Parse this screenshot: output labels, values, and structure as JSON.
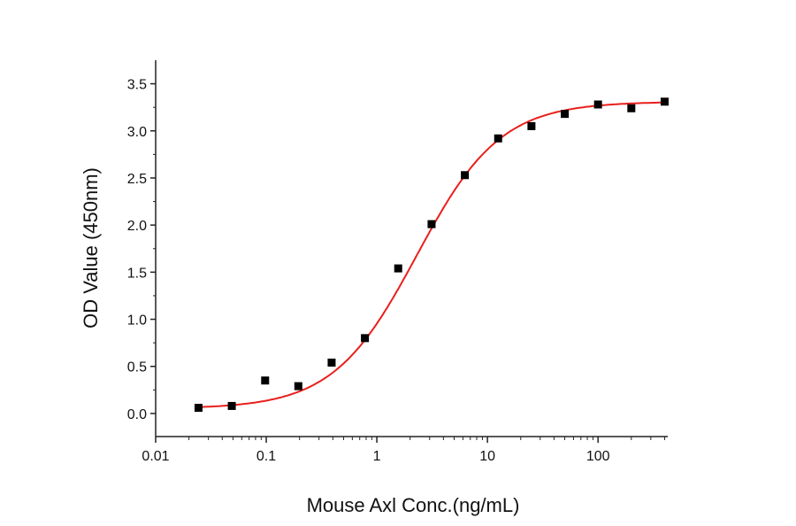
{
  "chart_data": {
    "type": "scatter",
    "title": "",
    "xlabel": "Mouse Axl Conc.(ng/mL)",
    "ylabel": "OD Value (450nm)",
    "x_scale": "log",
    "xlim": [
      0.01,
      427
    ],
    "ylim": [
      -0.245,
      3.75
    ],
    "x_ticks": [
      "0.01",
      "0.1",
      "1",
      "10",
      "100"
    ],
    "y_ticks": [
      "0.0",
      "0.5",
      "1.0",
      "1.5",
      "2.0",
      "2.5",
      "3.0",
      "3.5"
    ],
    "grid": false,
    "series": [
      {
        "marker": "square",
        "color": "#000000",
        "x": [
          0.0244,
          0.0488,
          0.0977,
          0.195,
          0.39,
          0.78,
          1.56,
          3.125,
          6.25,
          12.5,
          25,
          50,
          100,
          200,
          400
        ],
        "y": [
          0.06,
          0.08,
          0.35,
          0.29,
          0.54,
          0.8,
          1.54,
          2.01,
          2.53,
          2.92,
          3.05,
          3.18,
          3.28,
          3.24,
          3.31
        ]
      }
    ],
    "fit": {
      "type": "4PL sigmoid",
      "color": "#e8201c"
    }
  }
}
